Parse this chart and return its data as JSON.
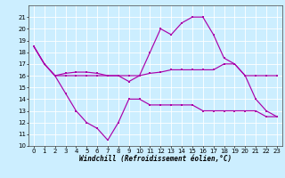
{
  "xlabel": "Windchill (Refroidissement éolien,°C)",
  "x": [
    0,
    1,
    2,
    3,
    4,
    5,
    6,
    7,
    8,
    9,
    10,
    11,
    12,
    13,
    14,
    15,
    16,
    17,
    18,
    19,
    20,
    21,
    22,
    23
  ],
  "line1": [
    18.5,
    17.0,
    16.0,
    16.2,
    16.3,
    16.3,
    16.2,
    16.0,
    16.0,
    15.5,
    16.0,
    16.2,
    16.3,
    16.5,
    16.5,
    16.5,
    16.5,
    16.5,
    17.0,
    17.0,
    16.0,
    16.0,
    16.0,
    16.0
  ],
  "line2": [
    18.5,
    17.0,
    16.0,
    14.5,
    13.0,
    12.0,
    11.5,
    10.5,
    12.0,
    14.0,
    14.0,
    13.5,
    13.5,
    13.5,
    13.5,
    13.5,
    13.0,
    13.0,
    13.0,
    13.0,
    13.0,
    13.0,
    12.5,
    12.5
  ],
  "line3": [
    18.5,
    17.0,
    16.0,
    16.0,
    16.0,
    16.0,
    16.0,
    16.0,
    16.0,
    16.0,
    16.0,
    18.0,
    20.0,
    19.5,
    20.5,
    21.0,
    21.0,
    19.5,
    17.5,
    17.0,
    16.0,
    14.0,
    13.0,
    12.5
  ],
  "color": "#aa00aa",
  "bg_color": "#cceeff",
  "ylim": [
    10,
    22
  ],
  "yticks": [
    10,
    11,
    12,
    13,
    14,
    15,
    16,
    17,
    18,
    19,
    20,
    21
  ],
  "xticks": [
    0,
    1,
    2,
    3,
    4,
    5,
    6,
    7,
    8,
    9,
    10,
    11,
    12,
    13,
    14,
    15,
    16,
    17,
    18,
    19,
    20,
    21,
    22,
    23
  ],
  "grid_color": "#ffffff",
  "label_fontsize": 5.5,
  "tick_fontsize": 5.0
}
